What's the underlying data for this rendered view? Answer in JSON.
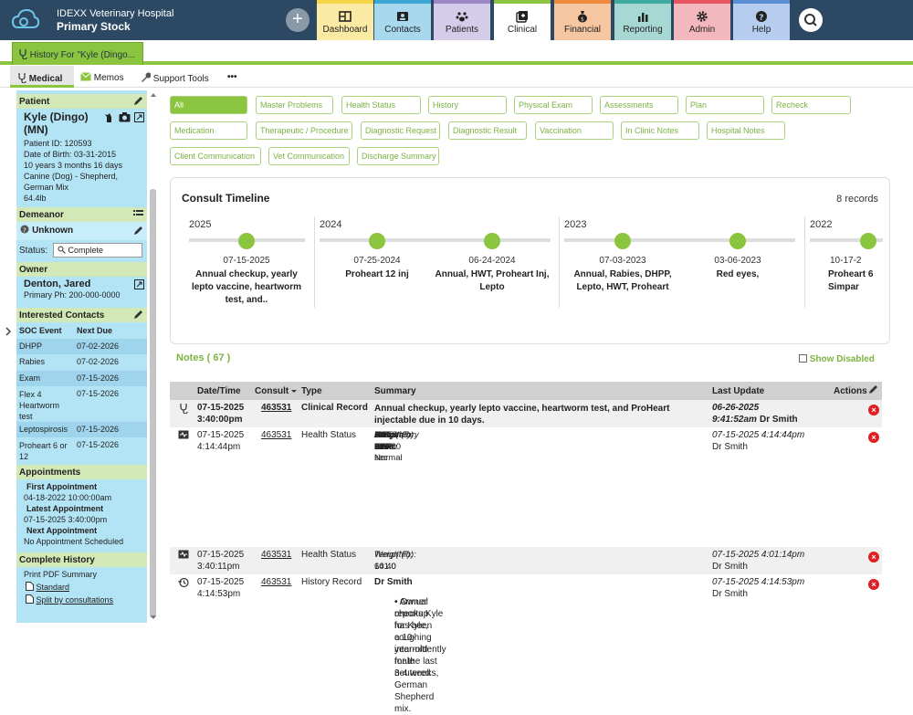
{
  "header": {
    "hospital_name": "IDEXX Veterinary Hospital",
    "stock": "Primary Stock",
    "tabs": [
      {
        "label": "Dashboard",
        "color": "#f5d547"
      },
      {
        "label": "Contacts",
        "color": "#3ba7d4"
      },
      {
        "label": "Patients",
        "color": "#9c88c6"
      },
      {
        "label": "Clinical",
        "color": "#8bc53f"
      },
      {
        "label": "Financial",
        "color": "#f08a3c"
      },
      {
        "label": "Reporting",
        "color": "#3eaaa0"
      },
      {
        "label": "Admin",
        "color": "#e8545f"
      },
      {
        "label": "Help",
        "color": "#5a8fd6"
      }
    ]
  },
  "history_tab": "History For \"Kyle (Dingo...",
  "menu": {
    "medical": "Medical",
    "memos": "Memos",
    "support": "Support Tools",
    "more": "•••"
  },
  "patient": {
    "header": "Patient",
    "name": "Kyle (Dingo)",
    "sex": "(MN)",
    "id": "Patient ID: 120593",
    "dob": "Date of Birth: 03-31-2015",
    "age": "10 years 3 months 16 days",
    "breed": "Canine (Dog) - Shepherd, German Mix",
    "weight": "64.4lb"
  },
  "demeanor": {
    "header": "Demeanor",
    "value": "Unknown",
    "status_label": "Status:",
    "status_value": "Complete"
  },
  "owner": {
    "header": "Owner",
    "name": "Denton, Jared",
    "phone": "Primary Ph: 200-000-0000"
  },
  "interested_contacts": {
    "header": "Interested Contacts"
  },
  "soc": {
    "col1": "SOC Event",
    "col2": "Next Due",
    "rows": [
      {
        "event": "DHPP",
        "due": "07-02-2026"
      },
      {
        "event": "Rabies",
        "due": "07-02-2026"
      },
      {
        "event": "Exam",
        "due": "07-15-2026"
      },
      {
        "event": "Flex 4 Heartworm test",
        "due": "07-15-2026"
      },
      {
        "event": "Leptospirosis",
        "due": "07-15-2026"
      },
      {
        "event": "Proheart 6 or 12",
        "due": "07-15-2026"
      }
    ]
  },
  "appointments": {
    "header": "Appointments",
    "first_label": "First Appointment",
    "first": "04-18-2022 10:00:00am",
    "latest_label": "Latest Appointment",
    "latest": "07-15-2025 3:40:00pm",
    "next_label": "Next Appointment",
    "next": "No Appointment Scheduled"
  },
  "complete_history": {
    "header": "Complete History",
    "print": "Print PDF Summary",
    "standard": "Standard",
    "split": "Split by consultations"
  },
  "filters": [
    [
      "All",
      "Master Problems",
      "Health Status",
      "History",
      "Physical Exam",
      "Assessments",
      "Plan",
      "Recheck"
    ],
    [
      "Medication",
      "Therapeutic / Procedure",
      "Diagnostic Request",
      "Diagnostic Result",
      "Vaccination",
      "In Clinic Notes",
      "Hospital Notes"
    ],
    [
      "Client Communication",
      "Vet Communication",
      "Discharge Summary"
    ]
  ],
  "timeline": {
    "title": "Consult Timeline",
    "records": "8 records",
    "years": [
      "2025",
      "2024",
      "2023",
      "2022"
    ],
    "events": [
      {
        "date": "07-15-2025",
        "text": "Annual checkup, yearly lepto vaccine, heartworm test, and.."
      },
      {
        "date": "07-25-2024",
        "text": "Proheart 12 inj"
      },
      {
        "date": "06-24-2024",
        "text": "Annual, HWT, Proheart Inj, Lepto"
      },
      {
        "date": "07-03-2023",
        "text": "Annual, Rabies, DHPP, Lepto, HWT, Proheart"
      },
      {
        "date": "03-06-2023",
        "text": "Red eyes,"
      },
      {
        "date": "10-17-2",
        "text": "Proheart 6 Simpar"
      }
    ]
  },
  "notes": {
    "header": "Notes ( 67 )",
    "show_disabled": "Show Disabled"
  },
  "table": {
    "cols": [
      "Date/Time",
      "Consult",
      "Type",
      "Summary",
      "Last Update",
      "Actions"
    ],
    "rows": [
      {
        "date": "07-15-2025",
        "time": "3:40:00pm",
        "consult": "463531",
        "type": "Clinical Record",
        "summary": "Annual checkup, yearly lepto vaccine, heartworm test, and ProHeart injectable due in 10 days.",
        "upd1": "06-26-2025",
        "upd2": "9:41:52am",
        "upd_by": "Dr Smith"
      },
      {
        "date": "07-15-2025",
        "time": "4:14:44pm",
        "consult": "463531",
        "type": "Health Status",
        "vitals": [
          [
            "Weight(lb):",
            "64.40"
          ],
          [
            "Temp(°F):",
            "101.0"
          ],
          [
            "H.R.:",
            "120"
          ],
          [
            "R.R:",
            "24"
          ],
          [
            "B.C.S:",
            "6.0/9.0"
          ],
          [
            "Pain:",
            "1/5"
          ],
          [
            "CRT:",
            "<1 sec"
          ],
          [
            "MM:",
            "Pink"
          ],
          [
            "Attitude:",
            "BAR"
          ],
          [
            "Respiratory Effort:",
            "Normal"
          ]
        ],
        "upd1": "07-15-2025 4:14:44pm",
        "upd_by": "Dr Smith"
      },
      {
        "date": "07-15-2025",
        "time": "3:40:11pm",
        "consult": "463531",
        "type": "Health Status",
        "vitals": [
          [
            "Weight(lb):",
            "64.40"
          ],
          [
            "Temp(°F):",
            "101.0"
          ]
        ],
        "upd1": "07-15-2025 4:01:14pm",
        "upd_by": "Dr Smith"
      },
      {
        "date": "07-15-2025",
        "time": "4:14:53pm",
        "consult": "463531",
        "type": "History Record",
        "author": "Dr Smith",
        "bullets": [
          "Annual checkup for Kyle, a 10-year-old male neutered German Shepherd mix.",
          "Owner reports Kyle has been coughing intermittently for the last 3-4 weeks,"
        ],
        "upd1": "07-15-2025 4:14:53pm",
        "upd_by": "Dr Smith"
      }
    ]
  }
}
